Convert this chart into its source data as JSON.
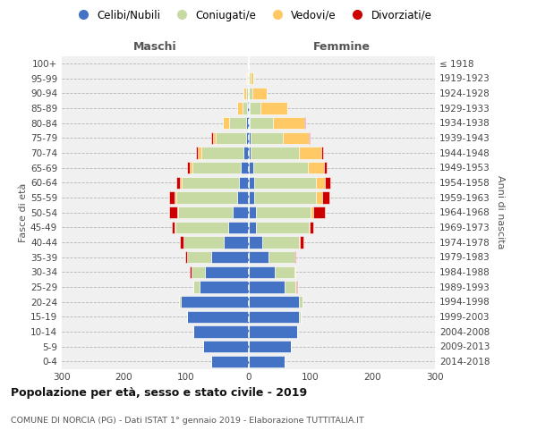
{
  "age_groups": [
    "0-4",
    "5-9",
    "10-14",
    "15-19",
    "20-24",
    "25-29",
    "30-34",
    "35-39",
    "40-44",
    "45-49",
    "50-54",
    "55-59",
    "60-64",
    "65-69",
    "70-74",
    "75-79",
    "80-84",
    "85-89",
    "90-94",
    "95-99",
    "100+"
  ],
  "birth_years": [
    "2014-2018",
    "2009-2013",
    "2004-2008",
    "1999-2003",
    "1994-1998",
    "1989-1993",
    "1984-1988",
    "1979-1983",
    "1974-1978",
    "1969-1973",
    "1964-1968",
    "1959-1963",
    "1954-1958",
    "1949-1953",
    "1944-1948",
    "1939-1943",
    "1934-1938",
    "1929-1933",
    "1924-1928",
    "1919-1923",
    "≤ 1918"
  ],
  "maschi": {
    "celibi": [
      60,
      72,
      88,
      98,
      108,
      78,
      70,
      60,
      40,
      32,
      25,
      18,
      15,
      12,
      8,
      4,
      3,
      2,
      1,
      1,
      1
    ],
    "coniugati": [
      0,
      0,
      0,
      1,
      3,
      10,
      22,
      38,
      65,
      85,
      88,
      98,
      92,
      78,
      68,
      48,
      28,
      8,
      3,
      1,
      0
    ],
    "vedovi": [
      0,
      0,
      0,
      0,
      0,
      0,
      0,
      0,
      0,
      1,
      2,
      2,
      3,
      4,
      5,
      5,
      10,
      8,
      4,
      1,
      0
    ],
    "divorziati": [
      0,
      0,
      0,
      0,
      0,
      1,
      2,
      3,
      5,
      5,
      12,
      9,
      6,
      4,
      3,
      2,
      0,
      0,
      0,
      0,
      0
    ]
  },
  "femmine": {
    "nubili": [
      58,
      68,
      78,
      82,
      82,
      58,
      42,
      32,
      22,
      12,
      12,
      10,
      10,
      8,
      4,
      3,
      2,
      2,
      1,
      1,
      1
    ],
    "coniugate": [
      0,
      0,
      0,
      2,
      5,
      18,
      32,
      42,
      60,
      85,
      88,
      98,
      98,
      88,
      78,
      52,
      38,
      18,
      6,
      2,
      0
    ],
    "vedove": [
      0,
      0,
      0,
      0,
      0,
      1,
      1,
      0,
      1,
      2,
      5,
      10,
      15,
      25,
      35,
      42,
      50,
      42,
      22,
      5,
      0
    ],
    "divorziate": [
      0,
      0,
      0,
      0,
      0,
      1,
      1,
      2,
      5,
      6,
      18,
      12,
      8,
      5,
      3,
      2,
      1,
      1,
      0,
      0,
      0
    ]
  },
  "colors": {
    "celibi": "#4472C4",
    "coniugati": "#c8daa4",
    "vedovi": "#ffc966",
    "divorziati": "#cc0000"
  },
  "legend_labels": [
    "Celibi/Nubili",
    "Coniugati/e",
    "Vedovi/e",
    "Divorziati/e"
  ],
  "title": "Popolazione per età, sesso e stato civile - 2019",
  "subtitle": "COMUNE DI NORCIA (PG) - Dati ISTAT 1° gennaio 2019 - Elaborazione TUTTITALIA.IT",
  "header_left": "Maschi",
  "header_right": "Femmine",
  "ylabel_left": "Fasce di età",
  "ylabel_right": "Anni di nascita",
  "xlim": 300,
  "bg_color": "#f0f0f0"
}
